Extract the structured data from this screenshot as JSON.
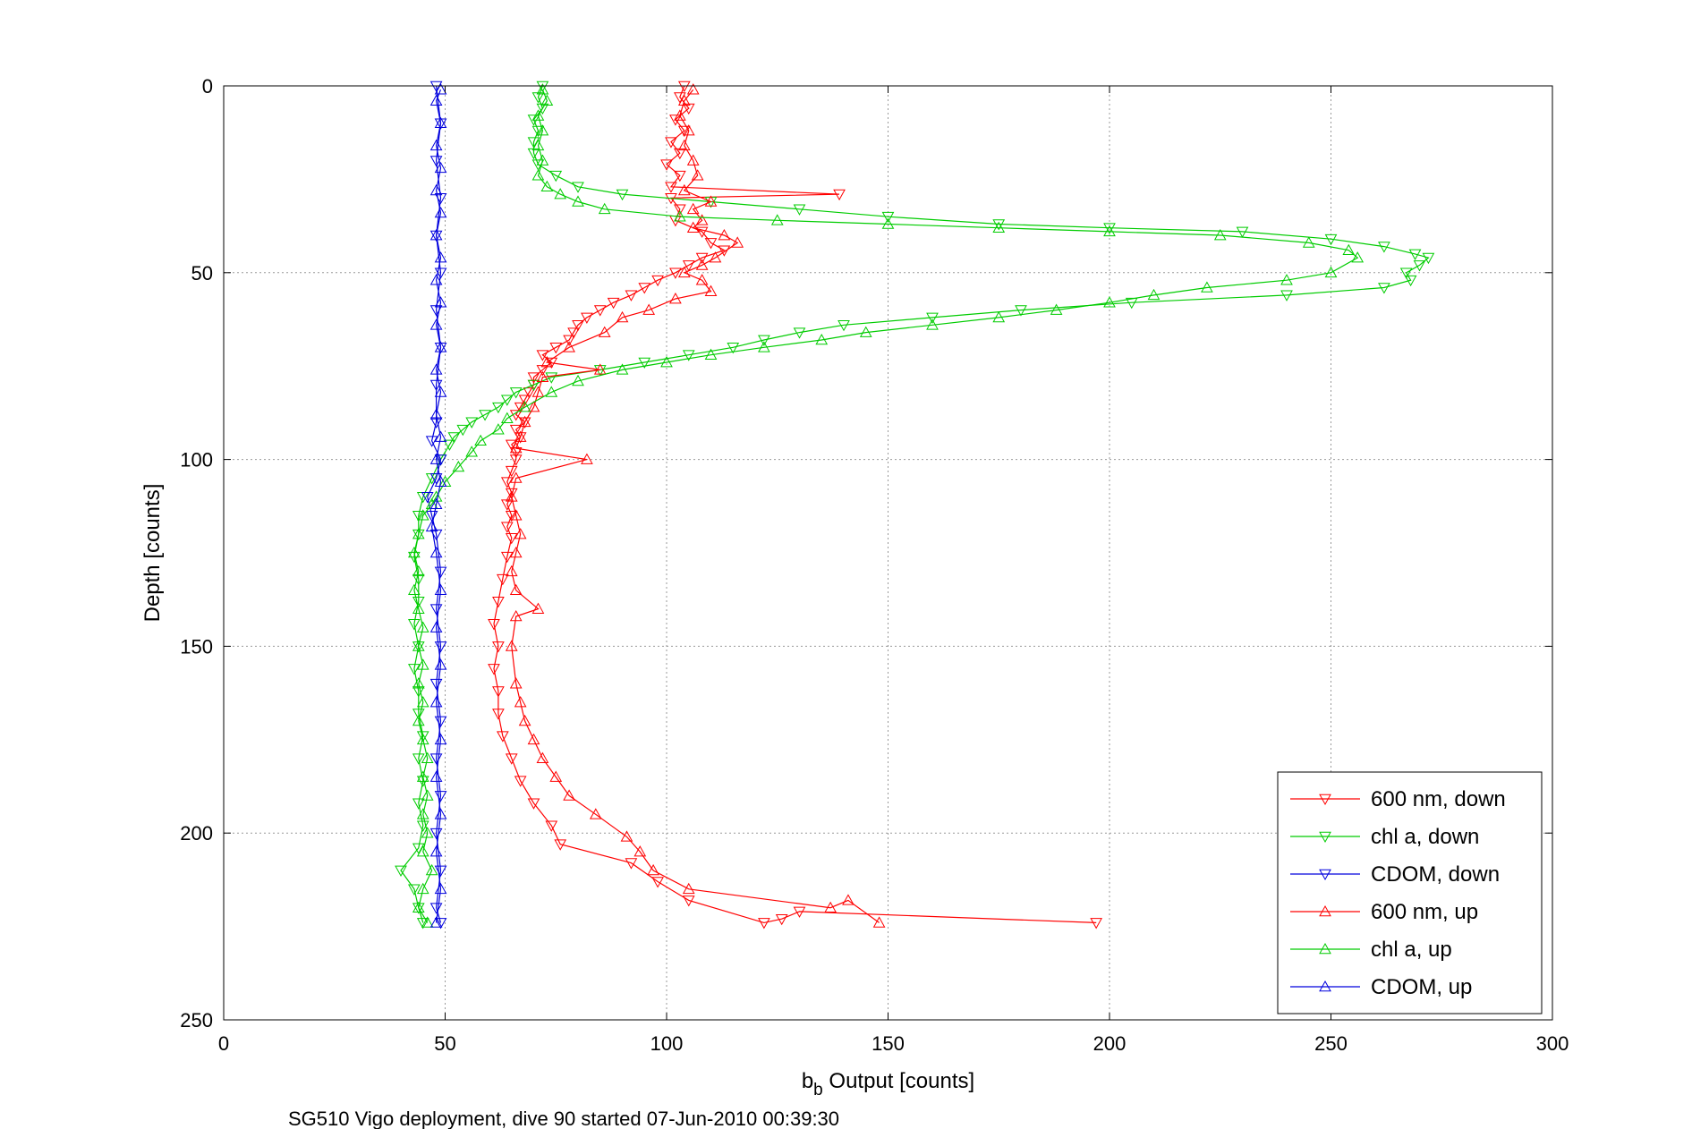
{
  "chart_data": {
    "type": "line",
    "xlabel_main": "b",
    "xlabel_sub": "b",
    "xlabel_rest": " Output [counts]",
    "ylabel": "Depth [counts]",
    "caption": "SG510 Vigo deployment, dive 90 started 07-Jun-2010 00:39:30",
    "xlim": [
      0,
      300
    ],
    "ylim": [
      0,
      250
    ],
    "y_reversed": true,
    "grid": true,
    "legend_position": "bottom-right",
    "x_ticks": [
      "0",
      "50",
      "100",
      "150",
      "200",
      "250",
      "300"
    ],
    "y_ticks": [
      "0",
      "50",
      "100",
      "150",
      "200",
      "250"
    ],
    "series": [
      {
        "name": "600 nm, down",
        "color": "#ff0000",
        "marker": "triangle-down",
        "points": [
          [
            104,
            0
          ],
          [
            103,
            3
          ],
          [
            105,
            6
          ],
          [
            102,
            9
          ],
          [
            104,
            12
          ],
          [
            101,
            15
          ],
          [
            103,
            18
          ],
          [
            100,
            21
          ],
          [
            103,
            24
          ],
          [
            101,
            27
          ],
          [
            139,
            29
          ],
          [
            101,
            30
          ],
          [
            103,
            33
          ],
          [
            102,
            36
          ],
          [
            108,
            39
          ],
          [
            110,
            42
          ],
          [
            113,
            44
          ],
          [
            108,
            46
          ],
          [
            105,
            48
          ],
          [
            102,
            50
          ],
          [
            98,
            52
          ],
          [
            95,
            54
          ],
          [
            92,
            56
          ],
          [
            88,
            58
          ],
          [
            85,
            60
          ],
          [
            82,
            62
          ],
          [
            80,
            64
          ],
          [
            79,
            66
          ],
          [
            78,
            68
          ],
          [
            75,
            70
          ],
          [
            72,
            72
          ],
          [
            74,
            74
          ],
          [
            72,
            76
          ],
          [
            70,
            78
          ],
          [
            70,
            80
          ],
          [
            69,
            82
          ],
          [
            68,
            84
          ],
          [
            67,
            86
          ],
          [
            66,
            88
          ],
          [
            68,
            90
          ],
          [
            66,
            92
          ],
          [
            67,
            94
          ],
          [
            65,
            96
          ],
          [
            66,
            98
          ],
          [
            66,
            100
          ],
          [
            65,
            103
          ],
          [
            64,
            106
          ],
          [
            65,
            109
          ],
          [
            64,
            112
          ],
          [
            65,
            115
          ],
          [
            64,
            118
          ],
          [
            65,
            121
          ],
          [
            64,
            126
          ],
          [
            63,
            132
          ],
          [
            62,
            138
          ],
          [
            61,
            144
          ],
          [
            62,
            150
          ],
          [
            61,
            156
          ],
          [
            62,
            162
          ],
          [
            62,
            168
          ],
          [
            63,
            174
          ],
          [
            65,
            180
          ],
          [
            67,
            186
          ],
          [
            70,
            192
          ],
          [
            74,
            198
          ],
          [
            76,
            203
          ],
          [
            92,
            208
          ],
          [
            98,
            213
          ],
          [
            105,
            218
          ],
          [
            122,
            224
          ],
          [
            126,
            223
          ],
          [
            130,
            221
          ],
          [
            197,
            224
          ]
        ]
      },
      {
        "name": "chl a, down",
        "color": "#00cc00",
        "marker": "triangle-down",
        "points": [
          [
            72,
            0
          ],
          [
            71,
            3
          ],
          [
            72,
            6
          ],
          [
            70,
            9
          ],
          [
            71,
            12
          ],
          [
            70,
            15
          ],
          [
            70,
            18
          ],
          [
            71,
            21
          ],
          [
            75,
            24
          ],
          [
            80,
            27
          ],
          [
            90,
            29
          ],
          [
            110,
            31
          ],
          [
            130,
            33
          ],
          [
            150,
            35
          ],
          [
            175,
            37
          ],
          [
            200,
            38
          ],
          [
            230,
            39
          ],
          [
            250,
            41
          ],
          [
            262,
            43
          ],
          [
            269,
            45
          ],
          [
            272,
            46
          ],
          [
            270,
            48
          ],
          [
            267,
            50
          ],
          [
            268,
            52
          ],
          [
            262,
            54
          ],
          [
            240,
            56
          ],
          [
            205,
            58
          ],
          [
            180,
            60
          ],
          [
            160,
            62
          ],
          [
            140,
            64
          ],
          [
            130,
            66
          ],
          [
            122,
            68
          ],
          [
            115,
            70
          ],
          [
            105,
            72
          ],
          [
            95,
            74
          ],
          [
            85,
            76
          ],
          [
            74,
            78
          ],
          [
            70,
            80
          ],
          [
            66,
            82
          ],
          [
            64,
            84
          ],
          [
            62,
            86
          ],
          [
            59,
            88
          ],
          [
            56,
            90
          ],
          [
            54,
            92
          ],
          [
            52,
            94
          ],
          [
            51,
            96
          ],
          [
            49,
            100
          ],
          [
            47,
            105
          ],
          [
            45,
            110
          ],
          [
            44,
            115
          ],
          [
            44,
            120
          ],
          [
            43,
            126
          ],
          [
            44,
            132
          ],
          [
            44,
            138
          ],
          [
            43,
            144
          ],
          [
            44,
            150
          ],
          [
            43,
            156
          ],
          [
            44,
            162
          ],
          [
            44,
            168
          ],
          [
            45,
            174
          ],
          [
            44,
            180
          ],
          [
            45,
            186
          ],
          [
            44,
            192
          ],
          [
            45,
            198
          ],
          [
            44,
            204
          ],
          [
            40,
            210
          ],
          [
            43,
            215
          ],
          [
            44,
            220
          ],
          [
            45,
            224
          ]
        ]
      },
      {
        "name": "CDOM, down",
        "color": "#0000dd",
        "marker": "triangle-down",
        "points": [
          [
            48,
            0
          ],
          [
            49,
            10
          ],
          [
            48,
            20
          ],
          [
            49,
            30
          ],
          [
            48,
            40
          ],
          [
            49,
            50
          ],
          [
            48,
            60
          ],
          [
            49,
            70
          ],
          [
            48,
            80
          ],
          [
            48,
            90
          ],
          [
            47,
            95
          ],
          [
            49,
            100
          ],
          [
            48,
            105
          ],
          [
            46,
            110
          ],
          [
            47,
            115
          ],
          [
            48,
            120
          ],
          [
            49,
            130
          ],
          [
            48,
            140
          ],
          [
            49,
            150
          ],
          [
            48,
            160
          ],
          [
            49,
            170
          ],
          [
            48,
            180
          ],
          [
            49,
            190
          ],
          [
            48,
            200
          ],
          [
            49,
            210
          ],
          [
            48,
            220
          ],
          [
            49,
            224
          ]
        ]
      },
      {
        "name": "600 nm, up",
        "color": "#ff0000",
        "marker": "triangle-up",
        "points": [
          [
            148,
            224
          ],
          [
            141,
            218
          ],
          [
            137,
            220
          ],
          [
            105,
            215
          ],
          [
            97,
            210
          ],
          [
            94,
            205
          ],
          [
            91,
            201
          ],
          [
            84,
            195
          ],
          [
            78,
            190
          ],
          [
            75,
            185
          ],
          [
            72,
            180
          ],
          [
            70,
            175
          ],
          [
            68,
            170
          ],
          [
            67,
            165
          ],
          [
            66,
            160
          ],
          [
            65,
            150
          ],
          [
            66,
            142
          ],
          [
            71,
            140
          ],
          [
            66,
            135
          ],
          [
            65,
            130
          ],
          [
            66,
            125
          ],
          [
            67,
            120
          ],
          [
            66,
            115
          ],
          [
            65,
            110
          ],
          [
            66,
            105
          ],
          [
            82,
            100
          ],
          [
            66,
            97
          ],
          [
            67,
            94
          ],
          [
            68,
            90
          ],
          [
            70,
            86
          ],
          [
            71,
            82
          ],
          [
            72,
            78
          ],
          [
            85,
            76
          ],
          [
            73,
            74
          ],
          [
            78,
            70
          ],
          [
            86,
            66
          ],
          [
            90,
            62
          ],
          [
            96,
            60
          ],
          [
            102,
            57
          ],
          [
            110,
            55
          ],
          [
            108,
            52
          ],
          [
            104,
            50
          ],
          [
            108,
            48
          ],
          [
            111,
            46
          ],
          [
            116,
            42
          ],
          [
            113,
            40
          ],
          [
            106,
            38
          ],
          [
            108,
            36
          ],
          [
            106,
            33
          ],
          [
            110,
            31
          ],
          [
            104,
            28
          ],
          [
            107,
            24
          ],
          [
            106,
            20
          ],
          [
            104,
            16
          ],
          [
            105,
            12
          ],
          [
            103,
            8
          ],
          [
            104,
            4
          ],
          [
            106,
            1
          ]
        ]
      },
      {
        "name": "chl a, up",
        "color": "#00cc00",
        "marker": "triangle-up",
        "points": [
          [
            46,
            224
          ],
          [
            44,
            220
          ],
          [
            45,
            215
          ],
          [
            47,
            210
          ],
          [
            45,
            205
          ],
          [
            46,
            200
          ],
          [
            45,
            195
          ],
          [
            46,
            190
          ],
          [
            45,
            185
          ],
          [
            46,
            180
          ],
          [
            45,
            175
          ],
          [
            44,
            170
          ],
          [
            45,
            165
          ],
          [
            44,
            160
          ],
          [
            45,
            155
          ],
          [
            44,
            150
          ],
          [
            45,
            145
          ],
          [
            44,
            140
          ],
          [
            43,
            135
          ],
          [
            44,
            130
          ],
          [
            43,
            125
          ],
          [
            44,
            120
          ],
          [
            45,
            115
          ],
          [
            47,
            112
          ],
          [
            48,
            110
          ],
          [
            50,
            106
          ],
          [
            53,
            102
          ],
          [
            56,
            98
          ],
          [
            58,
            95
          ],
          [
            62,
            92
          ],
          [
            64,
            89
          ],
          [
            68,
            86
          ],
          [
            74,
            82
          ],
          [
            80,
            79
          ],
          [
            90,
            76
          ],
          [
            100,
            74
          ],
          [
            110,
            72
          ],
          [
            122,
            70
          ],
          [
            135,
            68
          ],
          [
            145,
            66
          ],
          [
            160,
            64
          ],
          [
            175,
            62
          ],
          [
            188,
            60
          ],
          [
            200,
            58
          ],
          [
            210,
            56
          ],
          [
            222,
            54
          ],
          [
            240,
            52
          ],
          [
            250,
            50
          ],
          [
            256,
            46
          ],
          [
            254,
            44
          ],
          [
            245,
            42
          ],
          [
            225,
            40
          ],
          [
            200,
            39
          ],
          [
            175,
            38
          ],
          [
            150,
            37
          ],
          [
            125,
            36
          ],
          [
            103,
            35
          ],
          [
            86,
            33
          ],
          [
            80,
            31
          ],
          [
            76,
            29
          ],
          [
            73,
            27
          ],
          [
            71,
            24
          ],
          [
            72,
            20
          ],
          [
            71,
            16
          ],
          [
            72,
            12
          ],
          [
            71,
            8
          ],
          [
            73,
            4
          ],
          [
            72,
            1
          ]
        ]
      },
      {
        "name": "CDOM, up",
        "color": "#0000dd",
        "marker": "triangle-up",
        "points": [
          [
            48,
            224
          ],
          [
            49,
            215
          ],
          [
            48,
            205
          ],
          [
            49,
            195
          ],
          [
            48,
            185
          ],
          [
            49,
            175
          ],
          [
            48,
            165
          ],
          [
            49,
            155
          ],
          [
            48,
            145
          ],
          [
            49,
            135
          ],
          [
            48,
            125
          ],
          [
            47,
            118
          ],
          [
            48,
            112
          ],
          [
            49,
            106
          ],
          [
            48,
            100
          ],
          [
            49,
            94
          ],
          [
            48,
            88
          ],
          [
            49,
            82
          ],
          [
            48,
            76
          ],
          [
            49,
            70
          ],
          [
            48,
            64
          ],
          [
            49,
            58
          ],
          [
            48,
            52
          ],
          [
            49,
            46
          ],
          [
            48,
            40
          ],
          [
            49,
            34
          ],
          [
            48,
            28
          ],
          [
            49,
            22
          ],
          [
            48,
            16
          ],
          [
            49,
            10
          ],
          [
            48,
            4
          ],
          [
            49,
            1
          ]
        ]
      }
    ]
  }
}
